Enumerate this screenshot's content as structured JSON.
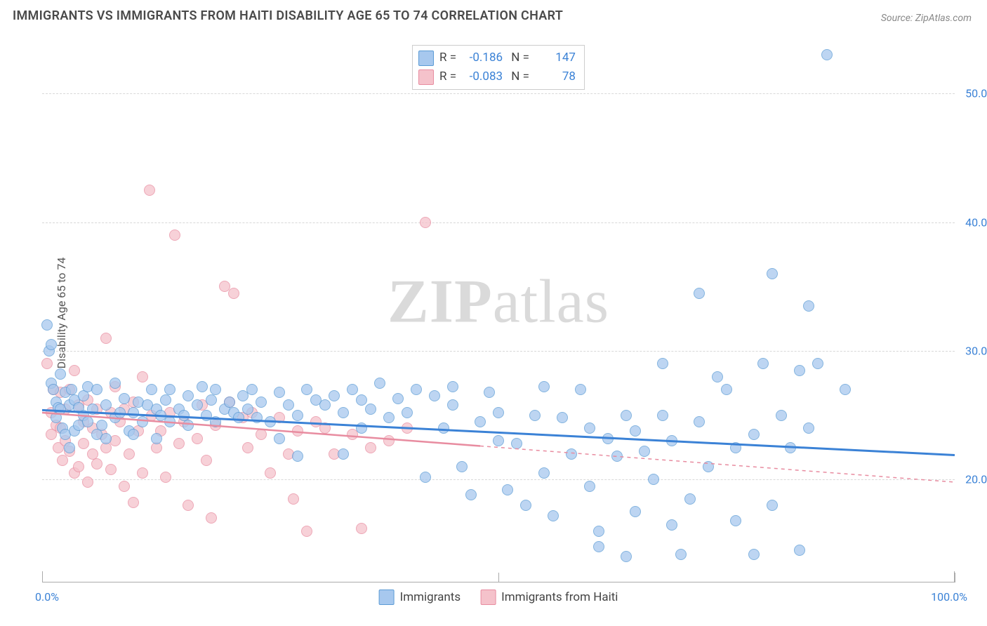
{
  "title": "IMMIGRANTS VS IMMIGRANTS FROM HAITI DISABILITY AGE 65 TO 74 CORRELATION CHART",
  "source": "Source: ZipAtlas.com",
  "watermark": {
    "zip": "ZIP",
    "atlas": "atlas"
  },
  "chart": {
    "type": "scatter",
    "ylabel": "Disability Age 65 to 74",
    "xlim": [
      0,
      100
    ],
    "ylim": [
      12,
      54
    ],
    "yticks": [
      20,
      30,
      40,
      50
    ],
    "ytick_labels": [
      "20.0%",
      "30.0%",
      "40.0%",
      "50.0%"
    ],
    "xticks_minor": [
      0,
      50,
      100
    ],
    "xtick_labels": {
      "left": "0.0%",
      "right": "100.0%"
    },
    "background_color": "#ffffff",
    "grid_color": "#d8d8d8",
    "marker_radius": 8,
    "marker_stroke_width": 1.5,
    "series": [
      {
        "name": "Immigrants",
        "fill": "#a7c8ee",
        "stroke": "#5b9bd5",
        "trend_color": "#3b82d6",
        "trend_width": 3,
        "trend_y_start": 25.4,
        "trend_y_end": 21.9,
        "trend_solid_to_x": 100,
        "R": "-0.186",
        "N": "147",
        "points": [
          [
            0.5,
            32
          ],
          [
            0.8,
            30
          ],
          [
            1,
            30.5
          ],
          [
            1,
            27.5
          ],
          [
            1.2,
            27
          ],
          [
            1.5,
            26
          ],
          [
            1.5,
            24.8
          ],
          [
            1.8,
            25.6
          ],
          [
            2,
            28.2
          ],
          [
            2,
            25.5
          ],
          [
            2.2,
            24
          ],
          [
            2.5,
            23.5
          ],
          [
            2.5,
            26.8
          ],
          [
            3,
            22.5
          ],
          [
            3,
            25.8
          ],
          [
            3.2,
            27
          ],
          [
            3.5,
            26.2
          ],
          [
            3.5,
            23.8
          ],
          [
            4,
            24.2
          ],
          [
            4,
            25.6
          ],
          [
            4.5,
            25
          ],
          [
            4.5,
            26.5
          ],
          [
            5,
            24.5
          ],
          [
            5,
            27.2
          ],
          [
            5.5,
            25.5
          ],
          [
            6,
            27
          ],
          [
            6,
            23.5
          ],
          [
            6.5,
            24.2
          ],
          [
            7,
            25.8
          ],
          [
            7,
            23.2
          ],
          [
            8,
            27.5
          ],
          [
            8,
            24.8
          ],
          [
            8.5,
            25.2
          ],
          [
            9,
            26.3
          ],
          [
            9.5,
            23.8
          ],
          [
            10,
            25.2
          ],
          [
            10,
            23.5
          ],
          [
            10.5,
            26
          ],
          [
            11,
            24.5
          ],
          [
            11.5,
            25.8
          ],
          [
            12,
            27
          ],
          [
            12.5,
            25.5
          ],
          [
            12.5,
            23.2
          ],
          [
            13,
            25
          ],
          [
            13.5,
            26.2
          ],
          [
            14,
            24.5
          ],
          [
            14,
            27
          ],
          [
            15,
            25.5
          ],
          [
            15.5,
            25
          ],
          [
            16,
            26.5
          ],
          [
            16,
            24.2
          ],
          [
            17,
            25.8
          ],
          [
            17.5,
            27.2
          ],
          [
            18,
            25
          ],
          [
            18.5,
            26.2
          ],
          [
            19,
            27
          ],
          [
            19,
            24.5
          ],
          [
            20,
            25.5
          ],
          [
            20.5,
            26
          ],
          [
            21,
            25.2
          ],
          [
            21.5,
            24.8
          ],
          [
            22,
            26.5
          ],
          [
            22.5,
            25.5
          ],
          [
            23,
            27
          ],
          [
            23.5,
            24.8
          ],
          [
            24,
            26
          ],
          [
            25,
            24.5
          ],
          [
            26,
            26.8
          ],
          [
            26,
            23.2
          ],
          [
            27,
            25.8
          ],
          [
            28,
            25
          ],
          [
            28,
            21.8
          ],
          [
            29,
            27
          ],
          [
            30,
            26.2
          ],
          [
            31,
            25.8
          ],
          [
            32,
            26.5
          ],
          [
            33,
            22
          ],
          [
            33,
            25.2
          ],
          [
            34,
            27
          ],
          [
            35,
            24
          ],
          [
            35,
            26.2
          ],
          [
            36,
            25.5
          ],
          [
            37,
            27.5
          ],
          [
            38,
            24.8
          ],
          [
            39,
            26.3
          ],
          [
            40,
            25.2
          ],
          [
            41,
            27
          ],
          [
            42,
            20.2
          ],
          [
            43,
            26.5
          ],
          [
            44,
            24
          ],
          [
            45,
            25.8
          ],
          [
            45,
            27.2
          ],
          [
            46,
            21
          ],
          [
            47,
            18.8
          ],
          [
            48,
            24.5
          ],
          [
            49,
            26.8
          ],
          [
            50,
            25.2
          ],
          [
            50,
            23
          ],
          [
            51,
            19.2
          ],
          [
            52,
            22.8
          ],
          [
            53,
            18
          ],
          [
            54,
            25
          ],
          [
            55,
            20.5
          ],
          [
            55,
            27.2
          ],
          [
            56,
            17.2
          ],
          [
            57,
            24.8
          ],
          [
            58,
            22
          ],
          [
            59,
            27
          ],
          [
            60,
            24
          ],
          [
            60,
            19.5
          ],
          [
            61,
            16
          ],
          [
            61,
            14.8
          ],
          [
            62,
            23.2
          ],
          [
            63,
            21.8
          ],
          [
            64,
            25
          ],
          [
            64,
            14
          ],
          [
            65,
            17.5
          ],
          [
            65,
            23.8
          ],
          [
            66,
            22.2
          ],
          [
            67,
            20
          ],
          [
            68,
            29
          ],
          [
            68,
            25
          ],
          [
            69,
            16.5
          ],
          [
            69,
            23
          ],
          [
            70,
            14.2
          ],
          [
            71,
            18.5
          ],
          [
            72,
            24.5
          ],
          [
            72,
            34.5
          ],
          [
            73,
            21
          ],
          [
            74,
            28
          ],
          [
            75,
            27
          ],
          [
            76,
            16.8
          ],
          [
            76,
            22.5
          ],
          [
            78,
            23.5
          ],
          [
            78,
            14.2
          ],
          [
            79,
            29
          ],
          [
            80,
            18
          ],
          [
            80,
            36
          ],
          [
            81,
            25
          ],
          [
            82,
            22.5
          ],
          [
            83,
            28.5
          ],
          [
            83,
            14.5
          ],
          [
            84,
            33.5
          ],
          [
            84,
            24
          ],
          [
            85,
            29
          ],
          [
            86,
            53
          ],
          [
            88,
            27
          ]
        ]
      },
      {
        "name": "Immigrants from Haiti",
        "fill": "#f5c2cb",
        "stroke": "#e88ca0",
        "trend_color": "#e88ca0",
        "trend_width": 2.5,
        "trend_y_start": 25.2,
        "trend_y_end": 19.8,
        "trend_solid_to_x": 48,
        "R": "-0.083",
        "N": "78",
        "points": [
          [
            0.5,
            29
          ],
          [
            1,
            25.2
          ],
          [
            1,
            23.5
          ],
          [
            1.2,
            27
          ],
          [
            1.5,
            24.2
          ],
          [
            1.8,
            22.5
          ],
          [
            2,
            26.8
          ],
          [
            2,
            24
          ],
          [
            2.2,
            21.5
          ],
          [
            2.5,
            25.5
          ],
          [
            2.5,
            23
          ],
          [
            3,
            27
          ],
          [
            3,
            22.2
          ],
          [
            3.5,
            28.5
          ],
          [
            3.5,
            20.5
          ],
          [
            4,
            25.8
          ],
          [
            4,
            21
          ],
          [
            4.5,
            24.5
          ],
          [
            4.5,
            22.8
          ],
          [
            5,
            26.2
          ],
          [
            5,
            19.8
          ],
          [
            5.5,
            24
          ],
          [
            5.5,
            22
          ],
          [
            6,
            25.5
          ],
          [
            6,
            21.2
          ],
          [
            6.5,
            23.5
          ],
          [
            7,
            31
          ],
          [
            7,
            22.5
          ],
          [
            7.5,
            25.2
          ],
          [
            7.5,
            20.8
          ],
          [
            8,
            27.2
          ],
          [
            8,
            23
          ],
          [
            8.5,
            24.5
          ],
          [
            9,
            19.5
          ],
          [
            9,
            25.5
          ],
          [
            9.5,
            22
          ],
          [
            10,
            26
          ],
          [
            10,
            18.2
          ],
          [
            10.5,
            23.8
          ],
          [
            11,
            28
          ],
          [
            11,
            20.5
          ],
          [
            11.8,
            42.5
          ],
          [
            12,
            25
          ],
          [
            12.5,
            22.5
          ],
          [
            13,
            23.8
          ],
          [
            13.5,
            20.2
          ],
          [
            14,
            25.2
          ],
          [
            14.5,
            39
          ],
          [
            15,
            22.8
          ],
          [
            15.5,
            24.5
          ],
          [
            16,
            18
          ],
          [
            17,
            23.2
          ],
          [
            17.5,
            25.8
          ],
          [
            18,
            21.5
          ],
          [
            18.5,
            17
          ],
          [
            19,
            24.2
          ],
          [
            20,
            35
          ],
          [
            20.5,
            26
          ],
          [
            21,
            34.5
          ],
          [
            22,
            24.8
          ],
          [
            22.5,
            22.5
          ],
          [
            23,
            25.2
          ],
          [
            24,
            23.5
          ],
          [
            25,
            20.5
          ],
          [
            26,
            24.8
          ],
          [
            27,
            22
          ],
          [
            27.5,
            18.5
          ],
          [
            28,
            23.8
          ],
          [
            29,
            16
          ],
          [
            30,
            24.5
          ],
          [
            31,
            24
          ],
          [
            32,
            22
          ],
          [
            34,
            23.5
          ],
          [
            35,
            16.2
          ],
          [
            36,
            22.5
          ],
          [
            38,
            23
          ],
          [
            40,
            24
          ],
          [
            42,
            40
          ]
        ]
      }
    ]
  }
}
